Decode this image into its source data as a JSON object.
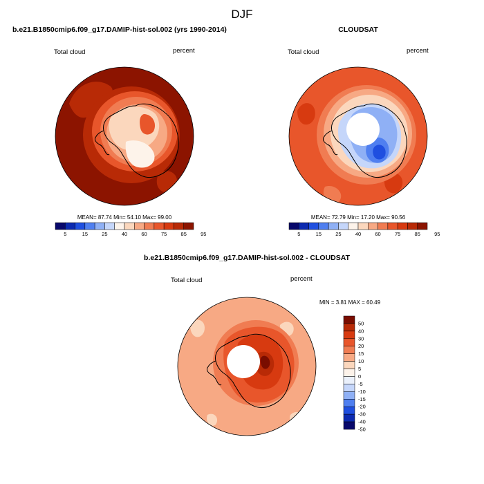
{
  "page": {
    "title": "DJF"
  },
  "panels": {
    "model": {
      "title": "b.e21.B1850cmip6.f09_g17.DAMIP-hist-sol.002 (yrs 1990-2014)",
      "left_label": "Total cloud",
      "right_label": "percent",
      "stats": "MEAN=  87.74  Min=  54.10  Max=  99.00"
    },
    "obs": {
      "title": "CLOUDSAT",
      "left_label": "Total cloud",
      "right_label": "percent",
      "stats": "MEAN=  72.79  Min=  17.20  Max=  90.56"
    },
    "diff": {
      "title": "b.e21.B1850cmip6.f09_g17.DAMIP-hist-sol.002 - CLOUDSAT",
      "left_label": "Total cloud",
      "right_label": "percent",
      "stats": "MIN =   3.81 MAX =  60.49"
    }
  },
  "colorbars": {
    "absolute": {
      "colors": [
        "#08086b",
        "#0c2ab0",
        "#1f4fe0",
        "#4f7ff0",
        "#8fb0f5",
        "#c5d6fa",
        "#fdf3ea",
        "#fbd7bd",
        "#f7a984",
        "#f07c52",
        "#e8562b",
        "#d73a10",
        "#b82a06",
        "#8c1400"
      ],
      "tick_labels": [
        "5",
        "15",
        "25",
        "40",
        "60",
        "75",
        "85",
        "95"
      ]
    },
    "difference": {
      "colors": [
        "#7a0d00",
        "#b82a06",
        "#d73a10",
        "#e8562b",
        "#f07c52",
        "#f7a984",
        "#fbd7bd",
        "#fdf3ea",
        "#eaf0fb",
        "#c5d6fa",
        "#8fb0f5",
        "#4f7ff0",
        "#1f4fe0",
        "#0c2ab0",
        "#08086b"
      ],
      "tick_labels": [
        "50",
        "40",
        "30",
        "20",
        "15",
        "10",
        "5",
        "0",
        "-5",
        "-10",
        "-15",
        "-20",
        "-30",
        "-40",
        "-50"
      ]
    }
  },
  "map_colors": {
    "dark_red": "#8c1400",
    "red": "#b82a06",
    "orange_red": "#e8562b",
    "orange": "#f07c52",
    "salmon": "#f7a984",
    "peach": "#fbd7bd",
    "cream": "#fdf3ea",
    "light_blue": "#c5d6fa",
    "blue": "#8fb0f5",
    "mid_blue": "#4f7ff0",
    "deep_blue": "#1f4fe0",
    "missing": "#ffffff"
  }
}
